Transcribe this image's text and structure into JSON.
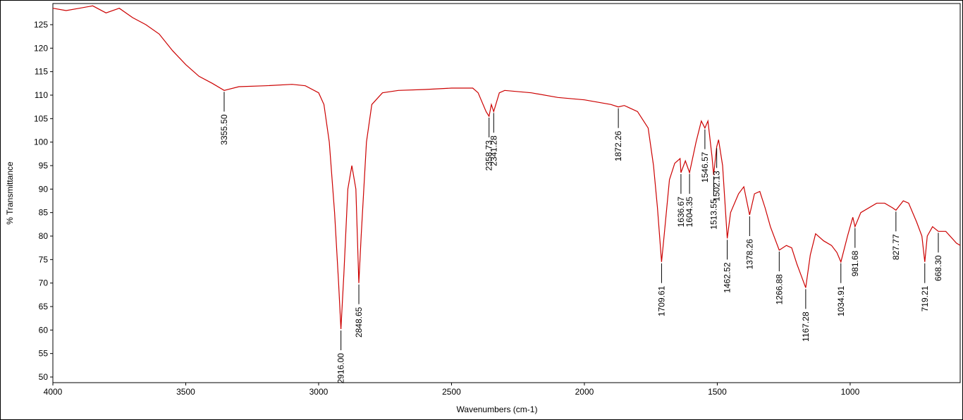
{
  "chart_data": {
    "type": "line",
    "xlabel": "Wavenumbers (cm-1)",
    "ylabel": "% Transmittance",
    "color": "#cc0000",
    "xlim": [
      4000,
      586
    ],
    "ylim": [
      48.8,
      129.5
    ],
    "xticks": [
      4000,
      3500,
      3000,
      2500,
      2000,
      1500,
      1000
    ],
    "yticks": [
      50,
      55,
      60,
      65,
      70,
      75,
      80,
      85,
      90,
      95,
      100,
      105,
      110,
      115,
      120,
      125
    ],
    "x": [
      4000,
      3950,
      3900,
      3850,
      3800,
      3750,
      3700,
      3650,
      3600,
      3550,
      3500,
      3450,
      3400,
      3355.5,
      3300,
      3200,
      3100,
      3050,
      3000,
      2980,
      2960,
      2940,
      2925,
      2916,
      2905,
      2890,
      2875,
      2860,
      2848.65,
      2840,
      2820,
      2800,
      2760,
      2700,
      2600,
      2500,
      2420,
      2400,
      2370,
      2358.73,
      2350,
      2341.28,
      2320,
      2300,
      2200,
      2100,
      2000,
      1900,
      1872.26,
      1850,
      1800,
      1760,
      1740,
      1725,
      1709.61,
      1700,
      1680,
      1660,
      1640,
      1636.67,
      1620,
      1604.35,
      1580,
      1560,
      1546.57,
      1535,
      1520,
      1513.55,
      1502.13,
      1495,
      1480,
      1462.52,
      1450,
      1420,
      1400,
      1378.26,
      1360,
      1340,
      1320,
      1300,
      1266.88,
      1240,
      1220,
      1200,
      1167.28,
      1150,
      1130,
      1100,
      1070,
      1050,
      1034.91,
      1010,
      990,
      981.68,
      960,
      900,
      870,
      840,
      827.77,
      800,
      780,
      750,
      730,
      719.21,
      710,
      690,
      668.3,
      640,
      600,
      586
    ],
    "values": [
      128.5,
      128,
      128.5,
      129,
      127.5,
      128.5,
      126.5,
      125,
      123,
      119.5,
      116.5,
      114,
      112.5,
      111,
      111.8,
      112,
      112.3,
      112,
      110.5,
      108,
      100,
      85,
      70,
      60.2,
      72,
      90,
      95,
      90,
      70,
      80,
      100,
      108,
      110.5,
      111,
      111.2,
      111.5,
      111.5,
      110.5,
      106.5,
      105.5,
      108,
      106.5,
      110.5,
      111,
      110.5,
      109.5,
      109,
      108,
      107.5,
      107.8,
      106.5,
      103,
      95,
      86,
      74.5,
      80,
      92,
      95.5,
      96.5,
      93.5,
      96,
      93.5,
      100,
      104.5,
      103,
      104.5,
      97,
      93,
      99,
      100.5,
      95,
      79.5,
      85,
      89,
      90.5,
      84.5,
      89,
      89.5,
      86,
      82,
      77,
      78,
      77.5,
      74,
      69,
      76,
      80.5,
      79,
      78,
      76.5,
      74.5,
      80,
      84,
      82,
      85,
      87,
      87,
      86,
      85.5,
      87.5,
      87,
      83,
      80,
      74.5,
      80,
      82,
      81,
      81,
      78.5,
      78
    ],
    "peaks": [
      {
        "value": 3355.5,
        "label": "3355.50"
      },
      {
        "value": 2916,
        "label": "2916.00"
      },
      {
        "value": 2848.65,
        "label": "2848.65"
      },
      {
        "value": 2358.73,
        "label": "2358.73"
      },
      {
        "value": 2341.28,
        "label": "2341.28"
      },
      {
        "value": 1872.26,
        "label": "1872.26"
      },
      {
        "value": 1709.61,
        "label": "1709.61"
      },
      {
        "value": 1636.67,
        "label": "1636.67"
      },
      {
        "value": 1604.35,
        "label": "1604.35"
      },
      {
        "value": 1546.57,
        "label": "1546.57"
      },
      {
        "value": 1513.55,
        "label": "1513.55"
      },
      {
        "value": 1502.13,
        "label": "1502.13"
      },
      {
        "value": 1462.52,
        "label": "1462.52"
      },
      {
        "value": 1378.26,
        "label": "1378.26"
      },
      {
        "value": 1266.88,
        "label": "1266.88"
      },
      {
        "value": 1167.28,
        "label": "1167.28"
      },
      {
        "value": 1034.91,
        "label": "1034.91"
      },
      {
        "value": 981.68,
        "label": "981.68"
      },
      {
        "value": 827.77,
        "label": "827.77"
      },
      {
        "value": 719.21,
        "label": "719.21"
      },
      {
        "value": 668.3,
        "label": "668.30"
      }
    ]
  }
}
